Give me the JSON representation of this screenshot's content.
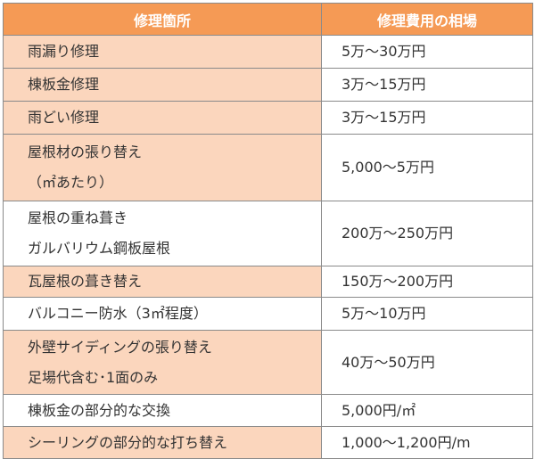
{
  "header": {
    "item_label": "修理箇所",
    "cost_label": "修理費用の相場"
  },
  "rows": [
    {
      "item": "雨漏り修理",
      "cost": "5万～30万円"
    },
    {
      "item": "棟板金修理",
      "cost": "3万～15万円"
    },
    {
      "item": "雨どい修理",
      "cost": "3万～15万円"
    },
    {
      "item_lines": [
        "屋根材の張り替え",
        "（㎡あたり）"
      ],
      "cost": "5,000～5万円"
    },
    {
      "item_lines": [
        "屋根の重ね葺き",
        "ガルバリウム鋼板屋根"
      ],
      "cost": "200万～250万円"
    },
    {
      "item": "瓦屋根の葺き替え",
      "cost": "150万～200万円"
    },
    {
      "item": "バルコニー防水（3㎡程度）",
      "cost": "5万～10万円"
    },
    {
      "item_lines": [
        "外壁サイディングの張り替え",
        "足場代含む･1面のみ"
      ],
      "cost": "40万～50万円"
    },
    {
      "item": "棟板金の部分的な交換",
      "cost": "5,000円/㎡"
    },
    {
      "item": "シーリングの部分的な打ち替え",
      "cost": "1,000～1,200円/m"
    }
  ],
  "colors": {
    "header_bg": "#f59a55",
    "shaded_row_bg": "#fbd6bd",
    "border": "#8a8a8a",
    "text": "#333333"
  }
}
